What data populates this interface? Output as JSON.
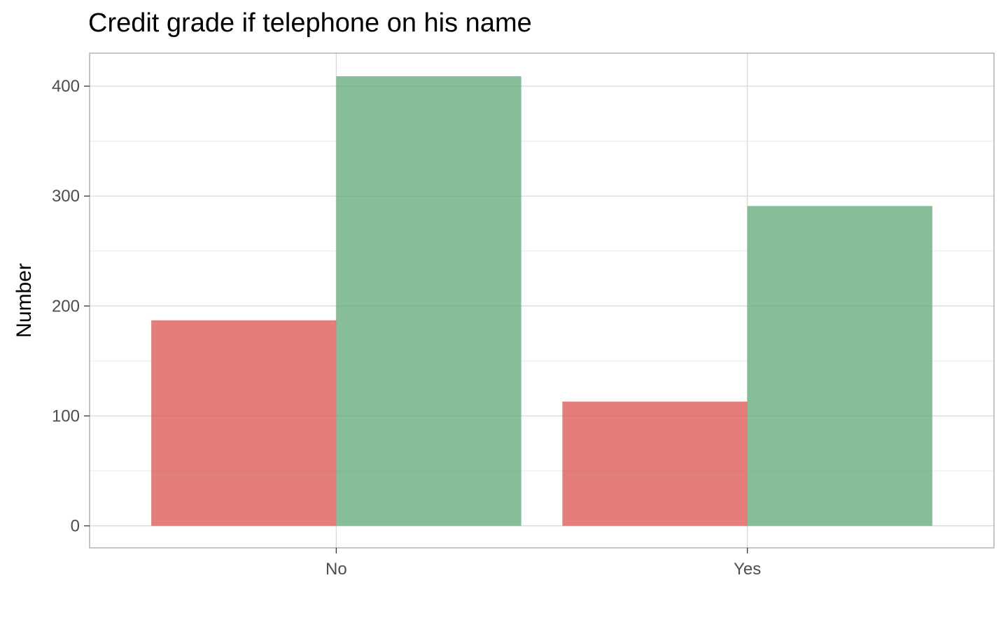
{
  "chart_data": {
    "type": "bar",
    "title": "Credit grade if telephone on his name",
    "xlabel": "",
    "ylabel": "Number",
    "categories": [
      "No",
      "Yes"
    ],
    "series": [
      {
        "values": [
          187,
          113
        ],
        "color": "#d9534f"
      },
      {
        "values": [
          409,
          291
        ],
        "color": "#5fa777"
      }
    ],
    "ylim": [
      -20,
      430
    ],
    "yticks": [
      0,
      100,
      200,
      300,
      400
    ],
    "grid": true,
    "legend": "none"
  }
}
